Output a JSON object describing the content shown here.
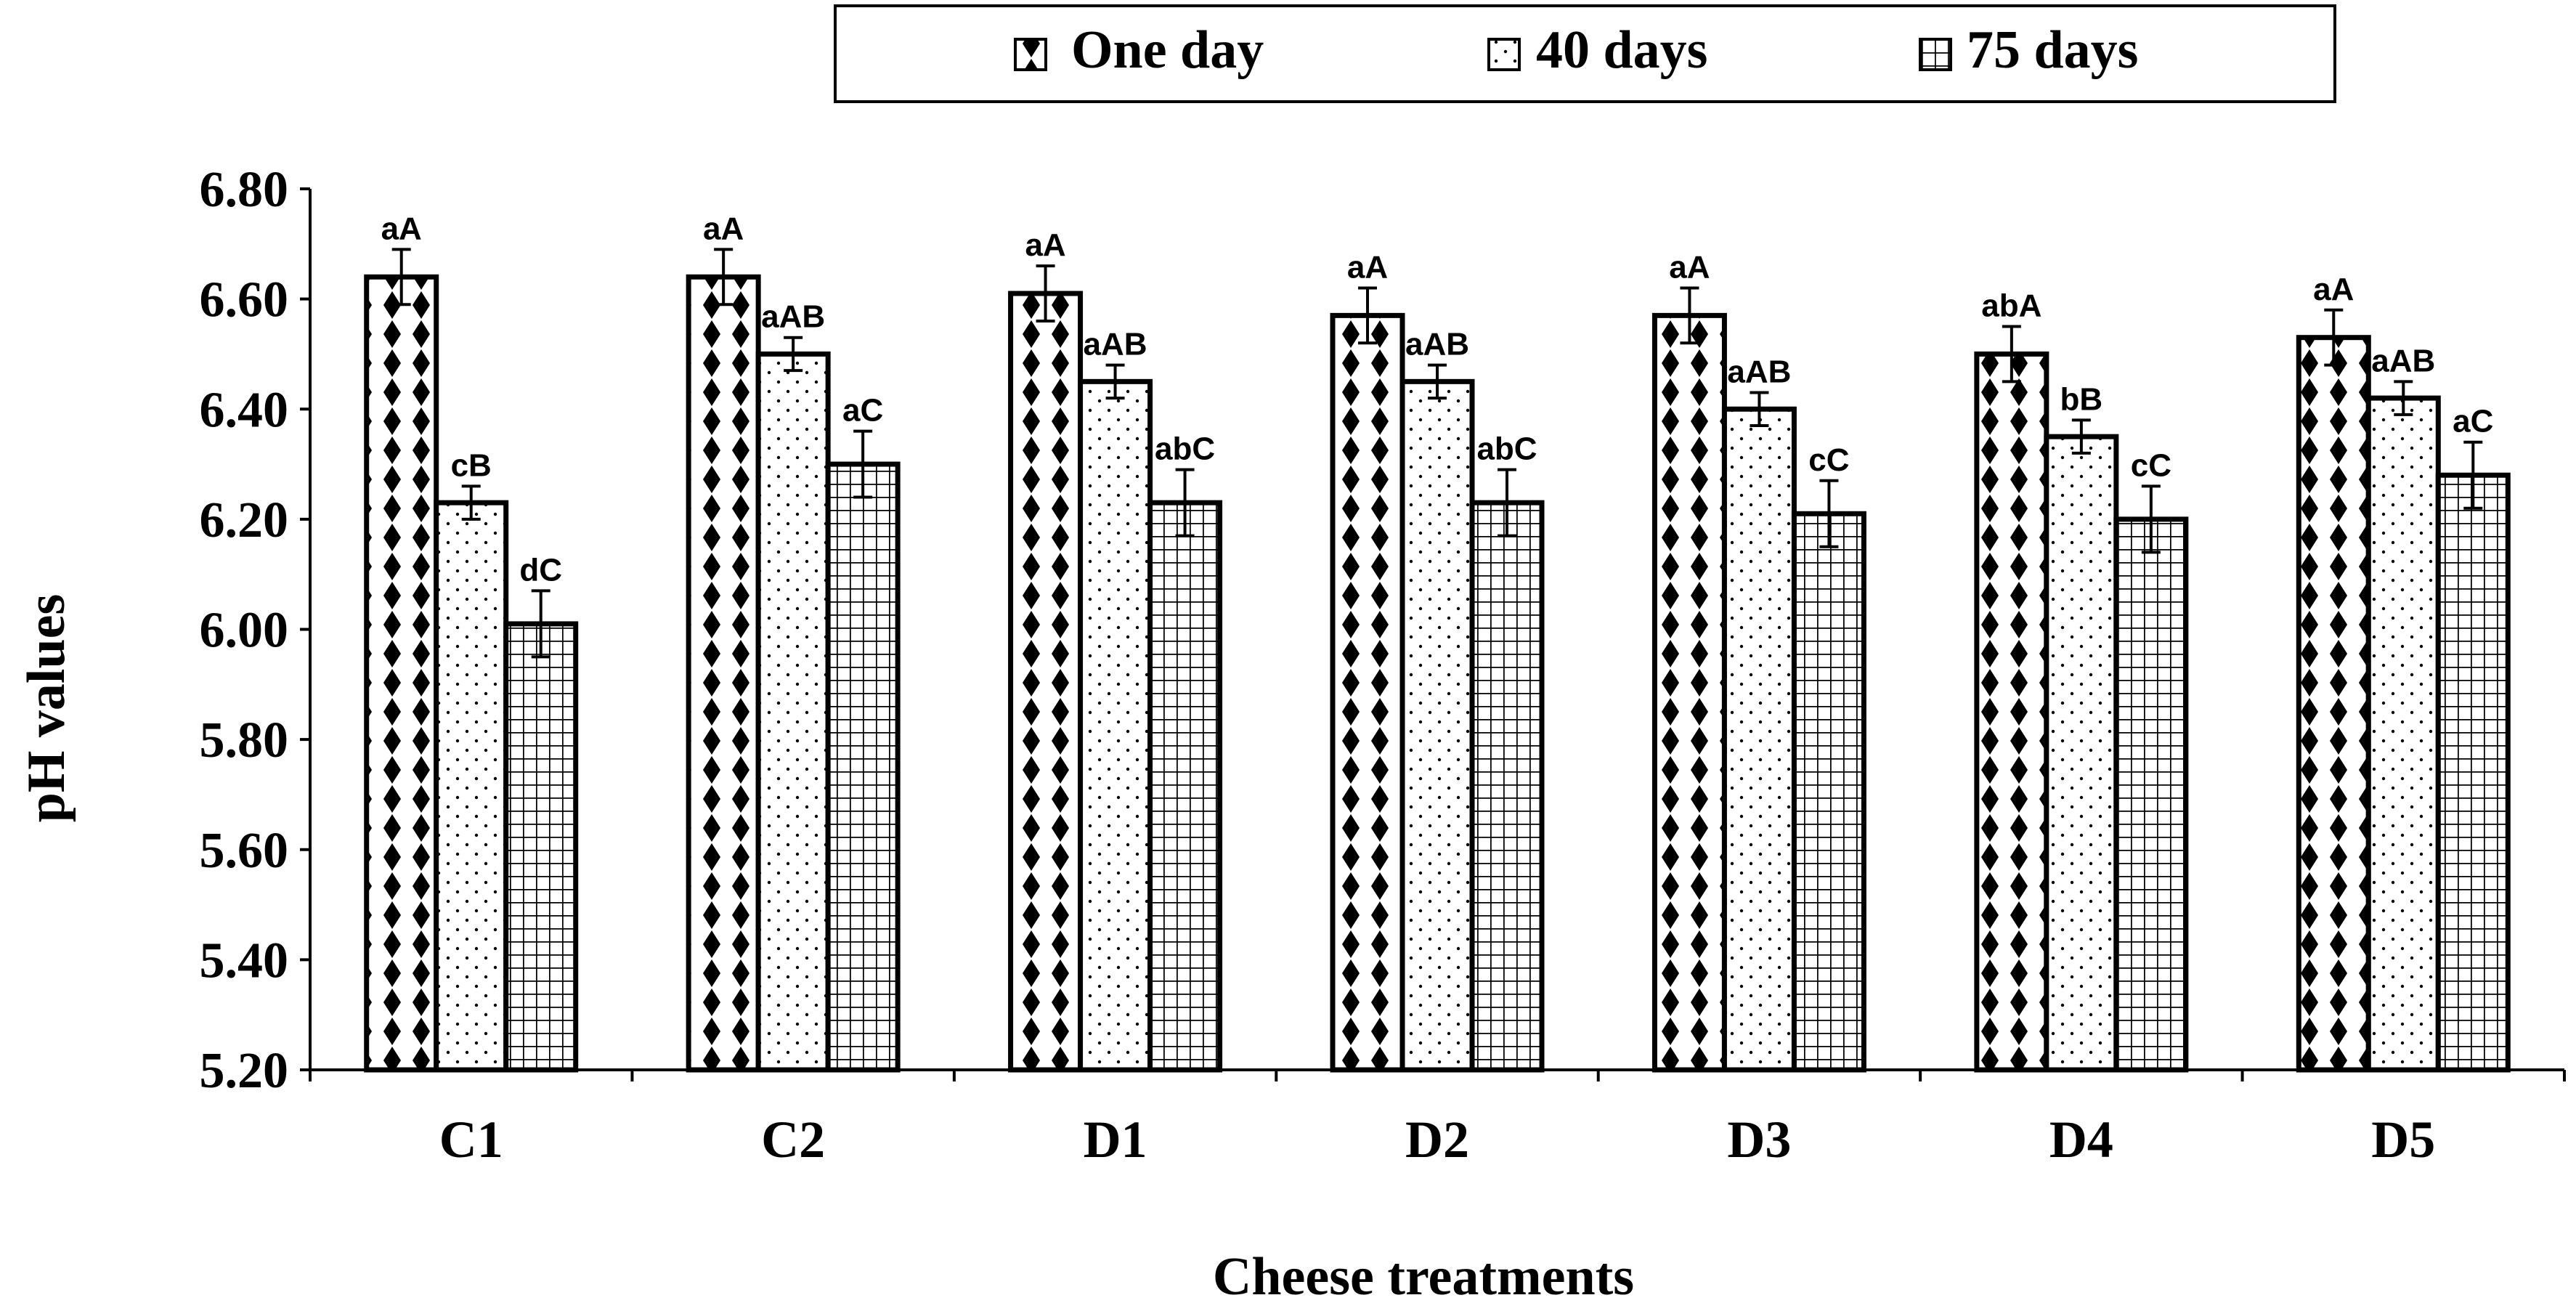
{
  "chart_data": {
    "type": "bar",
    "title": "",
    "xlabel": "Cheese treatments",
    "ylabel": "pH values",
    "categories": [
      "C1",
      "C2",
      "D1",
      "D2",
      "D3",
      "D4",
      "D5"
    ],
    "ylim": [
      5.2,
      6.8
    ],
    "yticks": [
      "5.20",
      "5.40",
      "5.60",
      "5.80",
      "6.00",
      "6.20",
      "6.40",
      "6.60",
      "6.80"
    ],
    "grid": false,
    "legend_position": "top",
    "series": [
      {
        "name": "One day",
        "pattern": "diamonds",
        "values": [
          6.64,
          6.64,
          6.61,
          6.57,
          6.57,
          6.5,
          6.53
        ],
        "errors": [
          0.05,
          0.05,
          0.05,
          0.05,
          0.05,
          0.05,
          0.05
        ],
        "labels": [
          "aA",
          "aA",
          "aA",
          "aA",
          "aA",
          "abA",
          "aA"
        ]
      },
      {
        "name": "40 days",
        "pattern": "dots",
        "values": [
          6.23,
          6.5,
          6.45,
          6.45,
          6.4,
          6.35,
          6.42
        ],
        "errors": [
          0.03,
          0.03,
          0.03,
          0.03,
          0.03,
          0.03,
          0.03
        ],
        "labels": [
          "cB",
          "aAB",
          "aAB",
          "aAB",
          "aAB",
          "bB",
          "aAB"
        ]
      },
      {
        "name": "75 days",
        "pattern": "grid",
        "values": [
          6.01,
          6.3,
          6.23,
          6.23,
          6.21,
          6.2,
          6.28
        ],
        "errors": [
          0.06,
          0.06,
          0.06,
          0.06,
          0.06,
          0.06,
          0.06
        ],
        "labels": [
          "dC",
          "aC",
          "abC",
          "abC",
          "cC",
          "cC",
          "aC"
        ]
      }
    ],
    "colors": {
      "fill": "#ffffff",
      "mark": "#000000",
      "axis": "#000000"
    }
  }
}
